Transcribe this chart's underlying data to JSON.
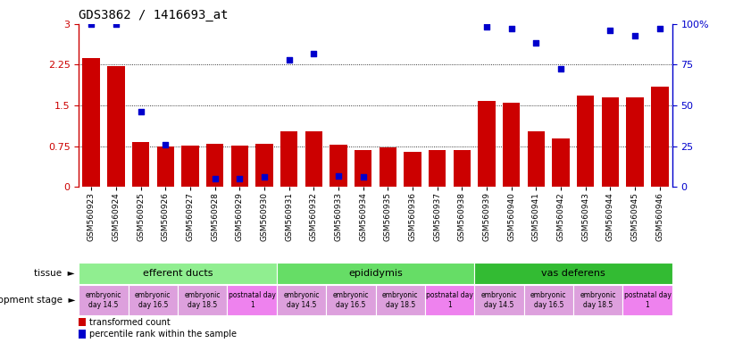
{
  "title": "GDS3862 / 1416693_at",
  "samples": [
    "GSM560923",
    "GSM560924",
    "GSM560925",
    "GSM560926",
    "GSM560927",
    "GSM560928",
    "GSM560929",
    "GSM560930",
    "GSM560931",
    "GSM560932",
    "GSM560933",
    "GSM560934",
    "GSM560935",
    "GSM560936",
    "GSM560937",
    "GSM560938",
    "GSM560939",
    "GSM560940",
    "GSM560941",
    "GSM560942",
    "GSM560943",
    "GSM560944",
    "GSM560945",
    "GSM560946"
  ],
  "red_values": [
    2.38,
    2.22,
    0.82,
    0.75,
    0.76,
    0.79,
    0.76,
    0.79,
    1.02,
    1.02,
    0.78,
    0.68,
    0.73,
    0.65,
    0.68,
    0.68,
    1.58,
    1.55,
    1.02,
    0.9,
    1.68,
    1.65,
    1.65,
    1.85
  ],
  "blue_left_axis_values": [
    3.0,
    3.0,
    1.38,
    0.78,
    null,
    0.15,
    0.15,
    0.18,
    2.34,
    2.46,
    0.21,
    0.18,
    null,
    null,
    null,
    null,
    2.95,
    2.92,
    2.65,
    2.18,
    null,
    2.88,
    2.78,
    2.92
  ],
  "tissue_groups": [
    {
      "label": "efferent ducts",
      "start": 0,
      "end": 8,
      "color": "#90EE90"
    },
    {
      "label": "epididymis",
      "start": 8,
      "end": 16,
      "color": "#66CC66"
    },
    {
      "label": "vas deferens",
      "start": 16,
      "end": 24,
      "color": "#33AA33"
    }
  ],
  "dev_stage_groups": [
    {
      "label": "embryonic\nday 14.5",
      "start": 0,
      "end": 2,
      "color": "#DDA0DD"
    },
    {
      "label": "embryonic\nday 16.5",
      "start": 2,
      "end": 4,
      "color": "#DDA0DD"
    },
    {
      "label": "embryonic\nday 18.5",
      "start": 4,
      "end": 6,
      "color": "#DDA0DD"
    },
    {
      "label": "postnatal day\n1",
      "start": 6,
      "end": 8,
      "color": "#EE82EE"
    },
    {
      "label": "embryonic\nday 14.5",
      "start": 8,
      "end": 10,
      "color": "#DDA0DD"
    },
    {
      "label": "embryonic\nday 16.5",
      "start": 10,
      "end": 12,
      "color": "#DDA0DD"
    },
    {
      "label": "embryonic\nday 18.5",
      "start": 12,
      "end": 14,
      "color": "#DDA0DD"
    },
    {
      "label": "postnatal day\n1",
      "start": 14,
      "end": 16,
      "color": "#EE82EE"
    },
    {
      "label": "embryonic\nday 14.5",
      "start": 16,
      "end": 18,
      "color": "#DDA0DD"
    },
    {
      "label": "embryonic\nday 16.5",
      "start": 18,
      "end": 20,
      "color": "#DDA0DD"
    },
    {
      "label": "embryonic\nday 18.5",
      "start": 20,
      "end": 22,
      "color": "#DDA0DD"
    },
    {
      "label": "postnatal day\n1",
      "start": 22,
      "end": 24,
      "color": "#EE82EE"
    }
  ],
  "ylim_left": [
    0,
    3.0
  ],
  "yticks_left": [
    0,
    0.75,
    1.5,
    2.25,
    3.0
  ],
  "ytick_right_labels": [
    "0",
    "25",
    "50",
    "75",
    "100%"
  ],
  "bar_color": "#CC0000",
  "dot_color": "#0000CC",
  "tissue_label": "tissue",
  "dev_label": "development stage"
}
